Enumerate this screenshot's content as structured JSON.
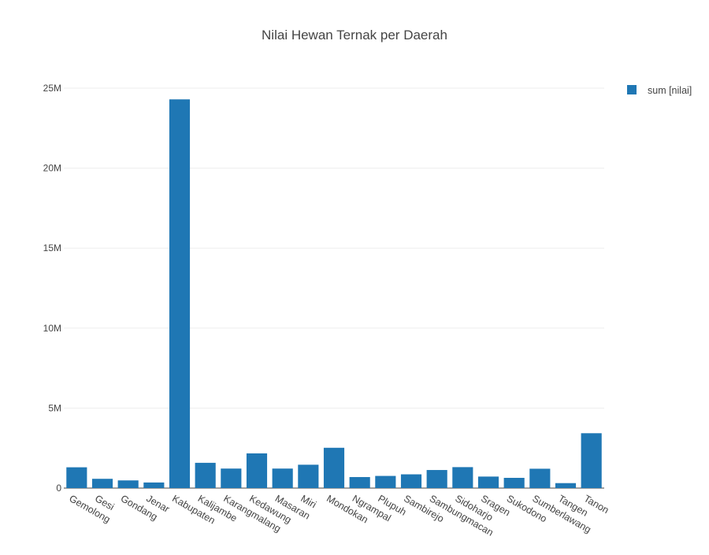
{
  "chart_data": {
    "type": "bar",
    "title": "Nilai Hewan Ternak per Daerah",
    "xlabel": "",
    "ylabel": "",
    "categories": [
      "Gemolong",
      "Gesi",
      "Gondang",
      "Jenar",
      "Kabupaten",
      "Kalijambe",
      "Karangmalang",
      "Kedawung",
      "Masaran",
      "Miri",
      "Mondokan",
      "Ngrampal",
      "Plupuh",
      "Sambirejo",
      "Sambungmacan",
      "Sidoharjo",
      "Sragen",
      "Sukodono",
      "Sumberlawang",
      "Tangen",
      "Tanon"
    ],
    "series": [
      {
        "name": "sum [nilai]",
        "color": "#1f77b4",
        "values": [
          1300000,
          580000,
          480000,
          350000,
          24300000,
          1580000,
          1220000,
          2170000,
          1220000,
          1460000,
          2520000,
          690000,
          760000,
          860000,
          1130000,
          1310000,
          720000,
          640000,
          1210000,
          310000,
          3430000
        ]
      }
    ],
    "ylim": [
      0,
      25000000
    ],
    "yticks": [
      0,
      5000000,
      10000000,
      15000000,
      20000000,
      25000000
    ],
    "ytick_labels": [
      "0",
      "5M",
      "10M",
      "15M",
      "20M",
      "25M"
    ],
    "grid": true,
    "legend_position": "top-right"
  }
}
